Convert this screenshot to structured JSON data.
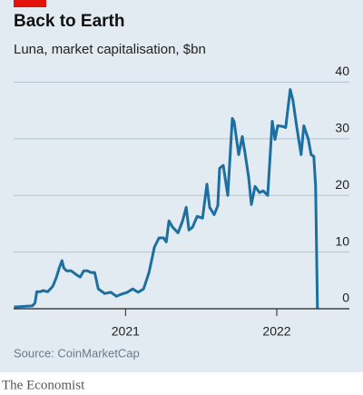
{
  "chart_data": {
    "type": "line",
    "title": "Back to Earth",
    "subtitle": "Luna, market capitalisation, $bn",
    "source": "Source: CoinMarketCap",
    "brand": "The Economist",
    "x": [
      2020.263,
      2020.383,
      2020.401,
      2020.413,
      2020.437,
      2020.455,
      2020.485,
      2020.503,
      2020.52,
      2020.544,
      2020.562,
      2020.58,
      2020.592,
      2020.61,
      2020.64,
      2020.676,
      2020.7,
      2020.724,
      2020.748,
      2020.772,
      2020.796,
      2020.82,
      2020.862,
      2020.904,
      2020.94,
      2020.976,
      2021.012,
      2021.047,
      2021.083,
      2021.119,
      2021.155,
      2021.191,
      2021.221,
      2021.251,
      2021.269,
      2021.287,
      2021.311,
      2021.347,
      2021.377,
      2021.401,
      2021.419,
      2021.443,
      2021.473,
      2021.509,
      2021.538,
      2021.556,
      2021.586,
      2021.61,
      2021.622,
      2021.646,
      2021.676,
      2021.706,
      2021.718,
      2021.748,
      2021.772,
      2021.79,
      2021.814,
      2021.832,
      2021.856,
      2021.886,
      2021.91,
      2021.94,
      2021.97,
      2021.988,
      2022.006,
      2022.035,
      2022.059,
      2022.089,
      2022.107,
      2022.131,
      2022.161,
      2022.179,
      2022.209,
      2022.227,
      2022.245,
      2022.257,
      2022.269
    ],
    "series": [
      {
        "name": "Luna",
        "color": "#1d6f9f",
        "values": [
          0.3,
          0.5,
          1,
          3,
          3,
          3.2,
          3,
          3.5,
          4,
          5.6,
          7.2,
          8.5,
          7.2,
          6.7,
          6.7,
          6,
          5.6,
          6.7,
          6.7,
          6.4,
          6.4,
          3.5,
          2.7,
          2.9,
          2.2,
          2.6,
          2.9,
          3.5,
          2.9,
          3.5,
          6.4,
          10.9,
          12.5,
          12.5,
          11.8,
          15.5,
          14.4,
          13.4,
          15.5,
          17.9,
          13.9,
          14.4,
          16.3,
          16,
          22,
          17.9,
          16.6,
          18.2,
          24.8,
          25.3,
          20,
          33.6,
          33,
          27.2,
          30.4,
          27.5,
          23.2,
          18.4,
          21.6,
          20.5,
          20.8,
          20,
          33.1,
          29.9,
          32.3,
          32.2,
          32,
          38.7,
          36.8,
          32.3,
          27.2,
          32.3,
          29.9,
          27.2,
          26.9,
          21.6,
          0
        ]
      }
    ],
    "xlim": [
      2020.26,
      2022.48
    ],
    "xticks": [
      2021,
      2022
    ],
    "ylim": [
      0,
      42
    ],
    "yticks": [
      0,
      10,
      20,
      30,
      40
    ],
    "grid": true
  }
}
